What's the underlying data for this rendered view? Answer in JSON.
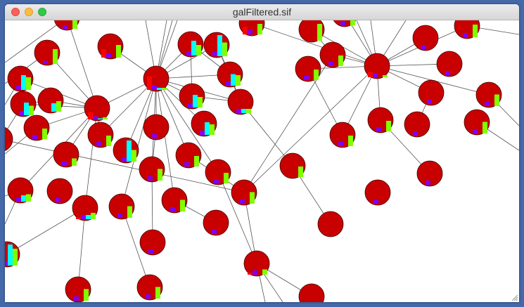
{
  "window": {
    "title": "galFiltered.sif"
  },
  "network": {
    "node_color": "#c80000",
    "edge_color": "#555555",
    "bar_colors": [
      "#ff0000",
      "#8000ff",
      "#00ffff",
      "#80ff00"
    ],
    "node_bars": [
      [
        0,
        0.15,
        0,
        0.5
      ],
      [
        0.4,
        0.2,
        0,
        0.6
      ],
      [
        0,
        0.15,
        0,
        0.7
      ],
      [
        0,
        0.2,
        0.7,
        0.5
      ],
      [
        0,
        0.2,
        1,
        0.65
      ],
      [
        0.35,
        0.2,
        0,
        0.5
      ],
      [
        0,
        0,
        0,
        0.8
      ],
      [
        0,
        0.2,
        0,
        0.4
      ],
      [
        0,
        0.2,
        0,
        0
      ],
      [
        0,
        0.2,
        0,
        0.6
      ],
      [
        0,
        0.2,
        0.7,
        0.6
      ],
      [
        0.65,
        0.2,
        0.1,
        0.1
      ],
      [
        0,
        0.2,
        0.55,
        0.5
      ],
      [
        0,
        0.2,
        0,
        0.5
      ],
      [
        0,
        0.2,
        0,
        0.5
      ],
      [
        0.25,
        0.2,
        0,
        0.1
      ],
      [
        0,
        0.2,
        0,
        0
      ],
      [
        0,
        0.2,
        0.6,
        0.45
      ],
      [
        0,
        0,
        0.4,
        0.5
      ],
      [
        0.35,
        0.15,
        0.05,
        0.1
      ],
      [
        0,
        0.2,
        0.6,
        0.5
      ],
      [
        0,
        0.2,
        0.2,
        0.2
      ],
      [
        0,
        0.2,
        0,
        0
      ],
      [
        0,
        0.2,
        0,
        0.55
      ],
      [
        0,
        0.2,
        0,
        0.5
      ],
      [
        0,
        0.2,
        0,
        0.5
      ],
      [
        0,
        0.2,
        0,
        0
      ],
      [
        0,
        0.2,
        0.6,
        0.5
      ],
      [
        0,
        0.2,
        0,
        0.5
      ],
      [
        0,
        0.2,
        0,
        0
      ],
      [
        0,
        0.2,
        0,
        0.55
      ],
      [
        0,
        0.2,
        0,
        0.5
      ],
      [
        0,
        0,
        0,
        0
      ],
      [
        0,
        0.2,
        0,
        0.35
      ],
      [
        0,
        0.2,
        1,
        0.55
      ],
      [
        0,
        0.2,
        0,
        0.5
      ],
      [
        0,
        0.2,
        0,
        0.55
      ],
      [
        0,
        0.2,
        0,
        0.5
      ],
      [
        0,
        0,
        0,
        0.5
      ],
      [
        0,
        0.2,
        0,
        0
      ],
      [
        0,
        0.2,
        0.3,
        0.35
      ],
      [
        0,
        0.2,
        0,
        0
      ],
      [
        0,
        0.2,
        0,
        0.55
      ],
      [
        0,
        0.2,
        0,
        0
      ],
      [
        0.1,
        0.2,
        0.2,
        0.3
      ],
      [
        0,
        0.2,
        0,
        0.55
      ],
      [
        0,
        0.2,
        0,
        0.55
      ],
      [
        0,
        0.2,
        0,
        0
      ],
      [
        0,
        0,
        0,
        0
      ],
      [
        0,
        0.2,
        0,
        0
      ],
      [
        0,
        0.2,
        1,
        0.8
      ],
      [
        0.1,
        0.2,
        0,
        0.25
      ],
      [
        0,
        0.2,
        0,
        0.55
      ],
      [
        0,
        0.2,
        0,
        0.55
      ],
      [
        0,
        0,
        0,
        0
      ]
    ]
  }
}
